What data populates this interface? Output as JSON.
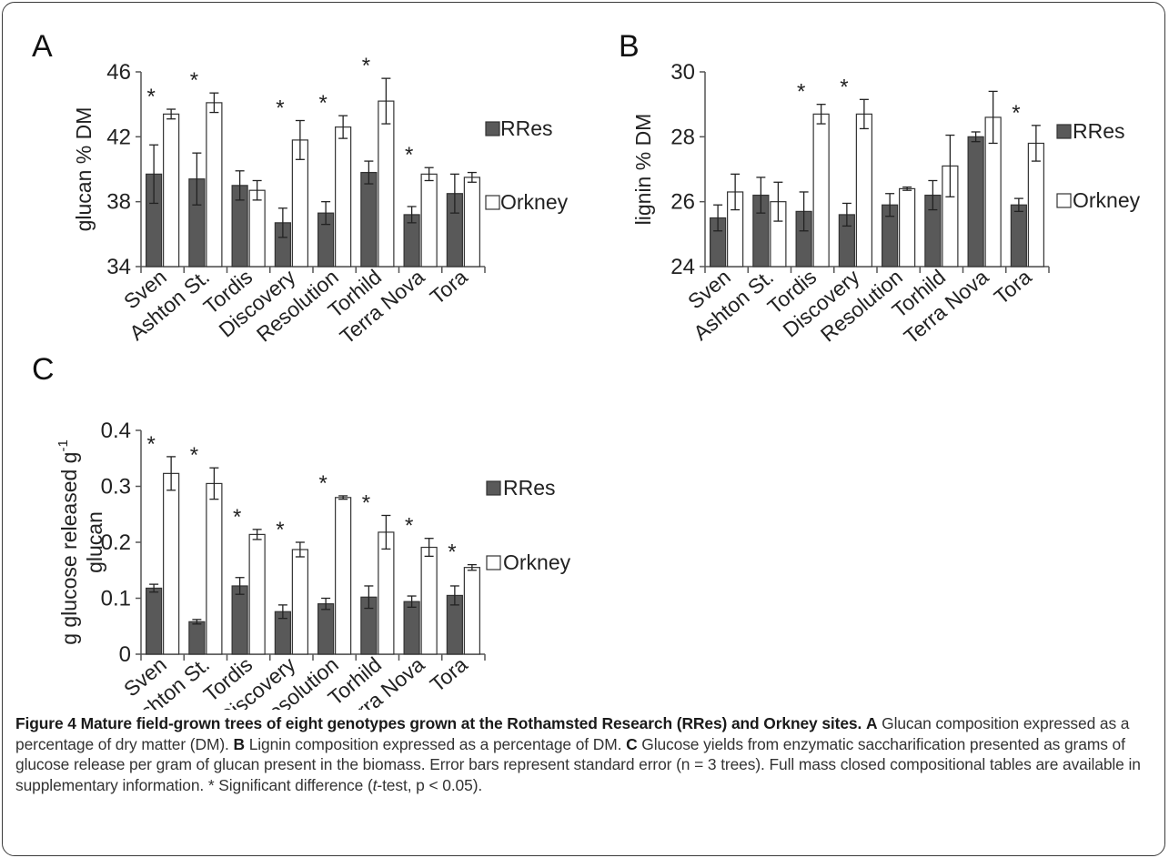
{
  "chart_data": [
    {
      "panel": "A",
      "type": "bar",
      "categories": [
        "Sven",
        "Ashton St.",
        "Tordis",
        "Discovery",
        "Resolution",
        "Torhild",
        "Terra Nova",
        "Tora"
      ],
      "series": [
        {
          "name": "RRes",
          "color": "#595959",
          "values": [
            39.7,
            39.4,
            39.0,
            36.7,
            37.3,
            39.8,
            37.2,
            38.5
          ],
          "errors": [
            1.8,
            1.6,
            0.9,
            0.9,
            0.7,
            0.7,
            0.5,
            1.2
          ]
        },
        {
          "name": "Orkney",
          "color": "#ffffff",
          "values": [
            43.4,
            44.1,
            38.7,
            41.8,
            42.6,
            44.2,
            39.7,
            39.5
          ],
          "errors": [
            0.3,
            0.6,
            0.6,
            1.2,
            0.7,
            1.4,
            0.4,
            0.3
          ]
        }
      ],
      "significant": [
        true,
        true,
        false,
        true,
        true,
        true,
        true,
        false
      ],
      "ylabel": "glucan % DM",
      "ylim": [
        34,
        46
      ],
      "yticks": [
        "34",
        "38",
        "42",
        "46"
      ],
      "grid": false,
      "legend": "right"
    },
    {
      "panel": "B",
      "type": "bar",
      "categories": [
        "Sven",
        "Ashton St.",
        "Tordis",
        "Discovery",
        "Resolution",
        "Torhild",
        "Terra Nova",
        "Tora"
      ],
      "series": [
        {
          "name": "RRes",
          "color": "#595959",
          "values": [
            25.5,
            26.2,
            25.7,
            25.6,
            25.9,
            26.2,
            28.0,
            25.9
          ],
          "errors": [
            0.4,
            0.55,
            0.6,
            0.35,
            0.35,
            0.45,
            0.15,
            0.2
          ]
        },
        {
          "name": "Orkney",
          "color": "#ffffff",
          "values": [
            26.3,
            26.0,
            28.7,
            28.7,
            26.4,
            27.1,
            28.6,
            27.8
          ],
          "errors": [
            0.55,
            0.6,
            0.3,
            0.45,
            0.05,
            0.95,
            0.8,
            0.55
          ]
        }
      ],
      "significant": [
        false,
        false,
        true,
        true,
        false,
        false,
        false,
        true
      ],
      "ylabel": "lignin % DM",
      "ylim": [
        24,
        30
      ],
      "yticks": [
        "24",
        "26",
        "28",
        "30"
      ],
      "grid": false,
      "legend": "right"
    },
    {
      "panel": "C",
      "type": "bar",
      "categories": [
        "Sven",
        "Ashton St.",
        "Tordis",
        "Discovery",
        "Resolution",
        "Torhild",
        "Terra Nova",
        "Tora"
      ],
      "series": [
        {
          "name": "RRes",
          "color": "#595959",
          "values": [
            0.118,
            0.058,
            0.122,
            0.076,
            0.09,
            0.102,
            0.094,
            0.105
          ],
          "errors": [
            0.007,
            0.004,
            0.015,
            0.012,
            0.01,
            0.02,
            0.01,
            0.017
          ]
        },
        {
          "name": "Orkney",
          "color": "#ffffff",
          "values": [
            0.323,
            0.305,
            0.214,
            0.187,
            0.28,
            0.218,
            0.191,
            0.155
          ],
          "errors": [
            0.03,
            0.028,
            0.009,
            0.013,
            0.003,
            0.03,
            0.016,
            0.005
          ]
        }
      ],
      "significant": [
        true,
        true,
        true,
        true,
        true,
        true,
        true,
        true
      ],
      "ylabel": "g glucose released g",
      "ylabel_superscript": "-1",
      "ylabel_line2": "glucan",
      "ylim": [
        0,
        0.4
      ],
      "yticks": [
        "0",
        "0.1",
        "0.2",
        "0.3",
        "0.4"
      ],
      "grid": false,
      "legend": "right"
    }
  ],
  "significance_marker": "*",
  "caption": {
    "figure_label": "Figure 4",
    "title_a": "Mature field-grown trees of eight genotypes grown at the Rothamsted Research (",
    "title_b": "RRes",
    "title_c": ") and Orkney sites.",
    "label_a": "A",
    "text_a": "Glucan composition expressed as a percentage of dry matter (DM).",
    "label_b": "B",
    "text_b": "Lignin composition expressed as a percentage of DM.",
    "label_c": "C",
    "text_c": "Glucose yields from enzymatic saccharification presented as grams of glucose release per gram of glucan present in the biomass. Error bars represent standard error (n = 3 trees). Full mass closed compositional tables are available in supplementary information. * Significant difference (",
    "ttest": "t",
    "text_end": "-test, p < 0.05)."
  }
}
